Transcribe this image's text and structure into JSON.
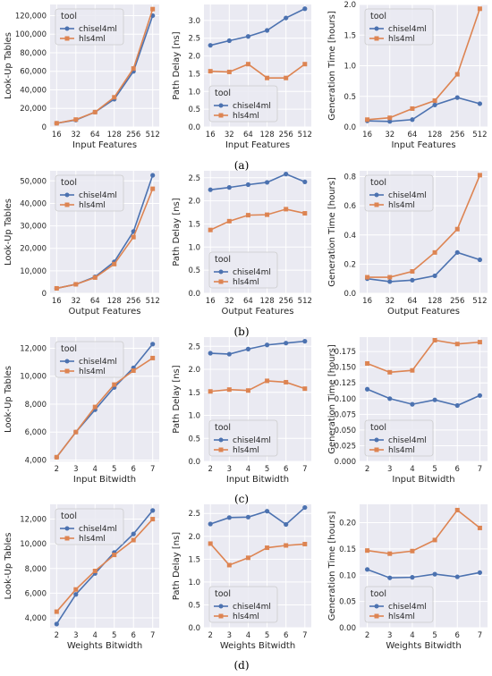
{
  "legend_title": "tool",
  "series_colors": {
    "chisel4ml": "#4c72b0",
    "hls4ml": "#dd8452"
  },
  "captions": [
    "(a)",
    "(b)",
    "(c)",
    "(d)"
  ],
  "chart_data": [
    {
      "type": "line",
      "row": 0,
      "col": 0,
      "x": [
        "16",
        "32",
        "64",
        "128",
        "256",
        "512"
      ],
      "xlabel": "Input Features",
      "ylabel": "Look-Up Tables",
      "ylim": [
        0,
        132000
      ],
      "yticks": [
        0,
        20000,
        40000,
        60000,
        80000,
        100000,
        120000
      ],
      "legend": "upper left",
      "series": [
        {
          "name": "chisel4ml",
          "values": [
            4000,
            7500,
            16000,
            30000,
            60000,
            120000
          ]
        },
        {
          "name": "hls4ml",
          "values": [
            4000,
            8000,
            16000,
            32000,
            63000,
            127000
          ]
        }
      ]
    },
    {
      "type": "line",
      "row": 0,
      "col": 1,
      "x": [
        "16",
        "32",
        "64",
        "128",
        "256",
        "512"
      ],
      "xlabel": "Input Features",
      "ylabel": "Path Delay [ns]",
      "ylim": [
        0,
        3.45
      ],
      "yticks": [
        0.0,
        0.5,
        1.0,
        1.5,
        2.0,
        2.5,
        3.0
      ],
      "legend": "lower left",
      "series": [
        {
          "name": "chisel4ml",
          "values": [
            2.3,
            2.43,
            2.55,
            2.72,
            3.07,
            3.33
          ]
        },
        {
          "name": "hls4ml",
          "values": [
            1.57,
            1.55,
            1.77,
            1.38,
            1.38,
            1.77
          ]
        }
      ]
    },
    {
      "type": "line",
      "row": 0,
      "col": 2,
      "x": [
        "16",
        "32",
        "64",
        "128",
        "256",
        "512"
      ],
      "xlabel": "Input Features",
      "ylabel": "Generation Time [hours]",
      "ylim": [
        0,
        2.0
      ],
      "yticks": [
        0.0,
        0.5,
        1.0,
        1.5,
        2.0
      ],
      "legend": "upper left",
      "series": [
        {
          "name": "chisel4ml",
          "values": [
            0.1,
            0.09,
            0.12,
            0.36,
            0.48,
            0.38
          ]
        },
        {
          "name": "hls4ml",
          "values": [
            0.12,
            0.15,
            0.3,
            0.43,
            0.86,
            1.93
          ]
        }
      ]
    },
    {
      "type": "line",
      "row": 1,
      "col": 0,
      "x": [
        "16",
        "32",
        "64",
        "128",
        "256",
        "512"
      ],
      "xlabel": "Output Features",
      "ylabel": "Look-Up Tables",
      "ylim": [
        0,
        54500
      ],
      "yticks": [
        0,
        10000,
        20000,
        30000,
        40000,
        50000
      ],
      "legend": "upper left",
      "series": [
        {
          "name": "chisel4ml",
          "values": [
            2200,
            4000,
            7300,
            14000,
            27500,
            52500
          ]
        },
        {
          "name": "hls4ml",
          "values": [
            2200,
            4000,
            7000,
            13000,
            25000,
            46500
          ]
        }
      ]
    },
    {
      "type": "line",
      "row": 1,
      "col": 1,
      "x": [
        "16",
        "32",
        "64",
        "128",
        "256",
        "512"
      ],
      "xlabel": "Output Features",
      "ylabel": "Path Delay [ns]",
      "ylim": [
        0,
        2.65
      ],
      "yticks": [
        0.0,
        0.5,
        1.0,
        1.5,
        2.0,
        2.5
      ],
      "legend": "lower left",
      "series": [
        {
          "name": "chisel4ml",
          "values": [
            2.24,
            2.29,
            2.35,
            2.4,
            2.58,
            2.41
          ]
        },
        {
          "name": "hls4ml",
          "values": [
            1.37,
            1.56,
            1.69,
            1.7,
            1.82,
            1.73
          ]
        }
      ]
    },
    {
      "type": "line",
      "row": 1,
      "col": 2,
      "x": [
        "16",
        "32",
        "64",
        "128",
        "256",
        "512"
      ],
      "xlabel": "Output Features",
      "ylabel": "Generation Time [hours]",
      "ylim": [
        0,
        0.84
      ],
      "yticks": [
        0.0,
        0.2,
        0.4,
        0.6,
        0.8
      ],
      "legend": "upper left",
      "series": [
        {
          "name": "chisel4ml",
          "values": [
            0.1,
            0.08,
            0.09,
            0.12,
            0.28,
            0.23
          ]
        },
        {
          "name": "hls4ml",
          "values": [
            0.11,
            0.11,
            0.15,
            0.28,
            0.44,
            0.81
          ]
        }
      ]
    },
    {
      "type": "line",
      "row": 2,
      "col": 0,
      "x": [
        "2",
        "3",
        "4",
        "5",
        "6",
        "7"
      ],
      "xlabel": "Input Bitwidth",
      "ylabel": "Look-Up Tables",
      "ylim": [
        3900,
        12800
      ],
      "yticks": [
        4000,
        6000,
        8000,
        10000,
        12000
      ],
      "legend": "upper left",
      "series": [
        {
          "name": "chisel4ml",
          "values": [
            4200,
            6000,
            7600,
            9200,
            10600,
            12300
          ]
        },
        {
          "name": "hls4ml",
          "values": [
            4200,
            6000,
            7800,
            9400,
            10400,
            11300
          ]
        }
      ]
    },
    {
      "type": "line",
      "row": 2,
      "col": 1,
      "x": [
        "2",
        "3",
        "4",
        "5",
        "6",
        "7"
      ],
      "xlabel": "Input Bitwidth",
      "ylabel": "Path Delay [ns]",
      "ylim": [
        0,
        2.7
      ],
      "yticks": [
        0.0,
        0.5,
        1.0,
        1.5,
        2.0,
        2.5
      ],
      "legend": "lower left",
      "series": [
        {
          "name": "chisel4ml",
          "values": [
            2.35,
            2.33,
            2.44,
            2.53,
            2.57,
            2.61
          ]
        },
        {
          "name": "hls4ml",
          "values": [
            1.52,
            1.56,
            1.54,
            1.75,
            1.72,
            1.58
          ]
        }
      ]
    },
    {
      "type": "line",
      "row": 2,
      "col": 2,
      "x": [
        "2",
        "3",
        "4",
        "5",
        "6",
        "7"
      ],
      "xlabel": "Input Bitwidth",
      "ylabel": "Generation Time [hours]",
      "ylim": [
        0,
        0.198
      ],
      "yticks": [
        0.0,
        0.025,
        0.05,
        0.075,
        0.1,
        0.125,
        0.15,
        0.175
      ],
      "legend": "lower left",
      "series": [
        {
          "name": "chisel4ml",
          "values": [
            0.115,
            0.1,
            0.091,
            0.098,
            0.089,
            0.105
          ]
        },
        {
          "name": "hls4ml",
          "values": [
            0.156,
            0.142,
            0.145,
            0.193,
            0.187,
            0.19
          ]
        }
      ]
    },
    {
      "type": "line",
      "row": 3,
      "col": 0,
      "x": [
        "2",
        "3",
        "4",
        "5",
        "6",
        "7"
      ],
      "xlabel": "Weights Bitwidth",
      "ylabel": "Look-Up Tables",
      "ylim": [
        3200,
        13200
      ],
      "yticks": [
        4000,
        6000,
        8000,
        10000,
        12000
      ],
      "legend": "upper left",
      "series": [
        {
          "name": "chisel4ml",
          "values": [
            3500,
            5900,
            7600,
            9300,
            10800,
            12700
          ]
        },
        {
          "name": "hls4ml",
          "values": [
            4500,
            6300,
            7800,
            9100,
            10300,
            12000
          ]
        }
      ]
    },
    {
      "type": "line",
      "row": 3,
      "col": 1,
      "x": [
        "2",
        "3",
        "4",
        "5",
        "6",
        "7"
      ],
      "xlabel": "Weights Bitwidth",
      "ylabel": "Path Delay [ns]",
      "ylim": [
        0,
        2.7
      ],
      "yticks": [
        0.0,
        0.5,
        1.0,
        1.5,
        2.0,
        2.5
      ],
      "legend": "lower left",
      "series": [
        {
          "name": "chisel4ml",
          "values": [
            2.27,
            2.41,
            2.42,
            2.55,
            2.26,
            2.63
          ]
        },
        {
          "name": "hls4ml",
          "values": [
            1.84,
            1.37,
            1.53,
            1.75,
            1.8,
            1.83
          ]
        }
      ]
    },
    {
      "type": "line",
      "row": 3,
      "col": 2,
      "x": [
        "2",
        "3",
        "4",
        "5",
        "6",
        "7"
      ],
      "xlabel": "Weights Bitwidth",
      "ylabel": "Generation Time [hours]",
      "ylim": [
        0,
        0.235
      ],
      "yticks": [
        0.0,
        0.05,
        0.1,
        0.15,
        0.2
      ],
      "legend": "lower left",
      "series": [
        {
          "name": "chisel4ml",
          "values": [
            0.111,
            0.095,
            0.096,
            0.102,
            0.097,
            0.105
          ]
        },
        {
          "name": "hls4ml",
          "values": [
            0.147,
            0.141,
            0.146,
            0.167,
            0.224,
            0.19
          ]
        }
      ]
    }
  ]
}
